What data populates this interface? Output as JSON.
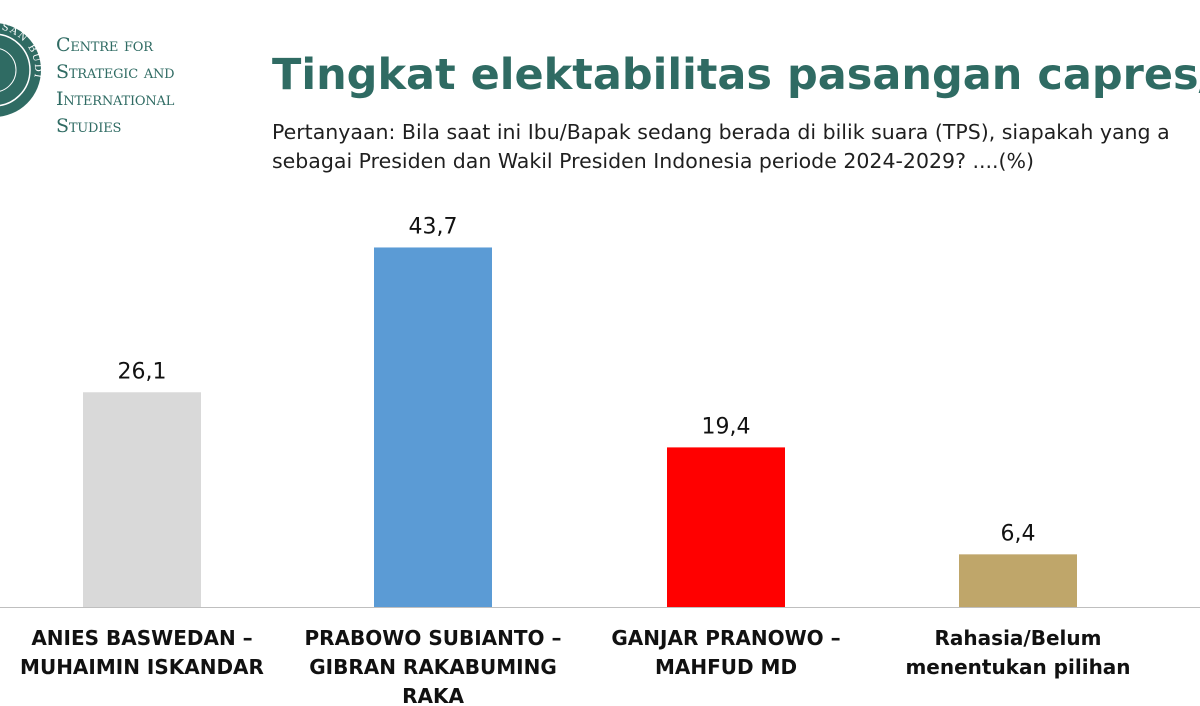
{
  "org": {
    "lines": [
      "Centre for",
      "Strategic and",
      "International",
      "Studies"
    ],
    "logo_text": "NUSAN BUDI"
  },
  "header": {
    "title": "Tingkat elektabilitas pasangan capres/",
    "question_line1": "Pertanyaan: Bila saat ini Ibu/Bapak sedang berada di bilik suara (TPS), siapakah yang a",
    "question_line2": "sebagai Presiden dan Wakil Presiden Indonesia periode 2024-2029? ....(%)"
  },
  "colors": {
    "brand": "#2f6b63"
  },
  "chart_data": {
    "type": "bar",
    "categories": [
      [
        "ANIES BASWEDAN –",
        "MUHAIMIN ISKANDAR"
      ],
      [
        "PRABOWO SUBIANTO –",
        "GIBRAN RAKABUMING",
        "RAKA"
      ],
      [
        "GANJAR PRANOWO –",
        "MAHFUD MD"
      ],
      [
        "Rahasia/Belum",
        "menentukan pilihan"
      ]
    ],
    "values": [
      26.1,
      43.7,
      19.4,
      6.4
    ],
    "value_labels": [
      "26,1",
      "43,7",
      "19,4",
      "6,4"
    ],
    "colors": [
      "#d9d9d9",
      "#5b9bd5",
      "#ff0000",
      "#bfa66a"
    ],
    "title": "",
    "xlabel": "",
    "ylabel": "",
    "ylim": [
      0,
      44
    ],
    "grid": false,
    "legend": "none"
  }
}
